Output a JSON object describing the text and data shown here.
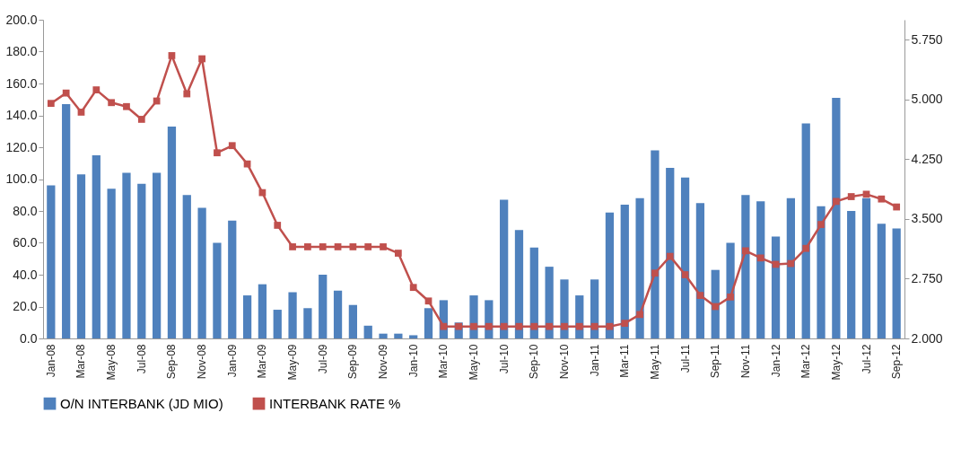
{
  "chart_data": {
    "type": "bar",
    "categories": [
      "Jan-08",
      null,
      "Mar-08",
      null,
      "May-08",
      null,
      "Jul-08",
      null,
      "Sep-08",
      null,
      "Nov-08",
      null,
      "Jan-09",
      null,
      "Mar-09",
      null,
      "May-09",
      null,
      "Jul-09",
      null,
      "Sep-09",
      null,
      "Nov-09",
      null,
      "Jan-10",
      null,
      "Mar-10",
      null,
      "May-10",
      null,
      "Jul-10",
      null,
      "Sep-10",
      null,
      "Nov-10",
      null,
      "Jan-11",
      null,
      "Mar-11",
      null,
      "May-11",
      null,
      "Jul-11",
      null,
      "Sep-11",
      null,
      "Nov-11",
      null,
      "Jan-12",
      null,
      "Mar-12",
      null,
      "May-12",
      null,
      "Jul-12",
      null,
      "Sep-12"
    ],
    "series": [
      {
        "name": "O/N INTERBANK (JD MIO)",
        "color": "#4f81bd",
        "values": [
          96,
          147,
          103,
          115,
          94,
          104,
          97,
          104,
          133,
          90,
          82,
          60,
          74,
          27,
          34,
          18,
          29,
          19,
          40,
          30,
          21,
          8,
          3,
          3,
          2,
          19,
          24,
          10,
          27,
          24,
          87,
          68,
          57,
          45,
          37,
          27,
          37,
          79,
          84,
          88,
          118,
          107,
          101,
          85,
          43,
          60,
          90,
          86,
          64,
          88,
          135,
          83,
          151,
          80,
          88,
          72,
          69
        ]
      },
      {
        "name": "INTERBANK RATE %",
        "type": "line",
        "axis": "y2",
        "color": "#c0504d",
        "marker": "square",
        "line_style": "solid",
        "values": [
          4.95,
          5.08,
          4.84,
          5.12,
          4.96,
          4.91,
          4.75,
          4.98,
          5.55,
          5.07,
          5.51,
          4.33,
          4.42,
          4.19,
          3.83,
          3.42,
          3.15,
          3.15,
          3.15,
          3.15,
          3.15,
          3.15,
          3.15,
          3.07,
          2.64,
          2.47,
          2.15,
          2.15,
          2.15,
          2.15,
          2.15,
          2.15,
          2.15,
          2.15,
          2.15,
          2.15,
          2.15,
          2.15,
          2.19,
          2.3,
          2.82,
          3.03,
          2.8,
          2.54,
          2.4,
          2.52,
          3.1,
          3.01,
          2.93,
          2.94,
          3.13,
          3.43,
          3.72,
          3.78,
          3.81,
          3.75,
          3.65
        ]
      }
    ],
    "ylim": [
      0,
      200
    ],
    "yticks": [
      {
        "value": 0,
        "label": "0.0"
      },
      {
        "value": 20,
        "label": "20.0"
      },
      {
        "value": 40,
        "label": "40.0"
      },
      {
        "value": 60,
        "label": "60.0"
      },
      {
        "value": 80,
        "label": "80.0"
      },
      {
        "value": 100,
        "label": "100.0"
      },
      {
        "value": 120,
        "label": "120.0"
      },
      {
        "value": 140,
        "label": "140.0"
      },
      {
        "value": 160,
        "label": "160.0"
      },
      {
        "value": 180,
        "label": "180.0"
      },
      {
        "value": 200,
        "label": "200.0"
      }
    ],
    "y2lim": [
      2,
      6
    ],
    "y2ticks": [
      {
        "value": 2,
        "label": "2.000"
      },
      {
        "value": 2.75,
        "label": "2.750"
      },
      {
        "value": 3.5,
        "label": "3.500"
      },
      {
        "value": 4.25,
        "label": "4.250"
      },
      {
        "value": 5,
        "label": "5.000"
      },
      {
        "value": 5.75,
        "label": "5.750"
      }
    ],
    "grid": false,
    "legend": "bottom"
  }
}
